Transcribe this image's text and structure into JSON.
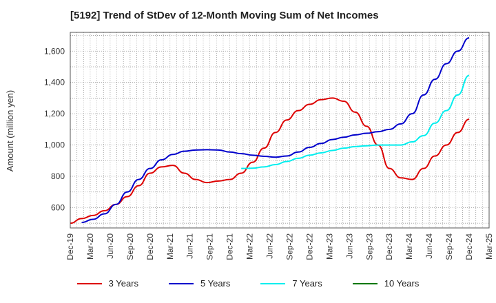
{
  "chart_data": {
    "type": "line",
    "title": "[5192]  Trend of StDev of 12-Month Moving Sum of Net Incomes",
    "ylabel": "Amount (million yen)",
    "xlabel": "",
    "x_ticks": [
      "Dec-19",
      "Mar-20",
      "Jun-20",
      "Sep-20",
      "Dec-20",
      "Mar-21",
      "Jun-21",
      "Sep-21",
      "Dec-21",
      "Mar-22",
      "Jun-22",
      "Sep-22",
      "Dec-22",
      "Mar-23",
      "Jun-23",
      "Sep-23",
      "Dec-23",
      "Mar-24",
      "Jun-24",
      "Sep-24",
      "Dec-24",
      "Mar-25"
    ],
    "y_ticks": [
      600,
      800,
      1000,
      1200,
      1400,
      1600
    ],
    "ylim": [
      470,
      1720
    ],
    "grid": true,
    "legend_position": "bottom",
    "series": [
      {
        "name": "3 Years",
        "color": "#dd0000",
        "values": [
          500,
          530,
          550,
          580,
          620,
          670,
          740,
          820,
          860,
          870,
          820,
          780,
          760,
          770,
          780,
          820,
          890,
          980,
          1080,
          1160,
          1220,
          1260,
          1290,
          1300,
          1280,
          1210,
          1120,
          1000,
          850,
          790,
          780,
          850,
          930,
          1000,
          1080,
          1165
        ]
      },
      {
        "name": "5 Years",
        "color": "#0000cc",
        "values": [
          null,
          505,
          525,
          560,
          620,
          700,
          780,
          850,
          905,
          940,
          960,
          968,
          970,
          968,
          955,
          945,
          935,
          928,
          922,
          930,
          955,
          985,
          1010,
          1035,
          1050,
          1065,
          1075,
          1085,
          1100,
          1135,
          1200,
          1320,
          1420,
          1520,
          1600,
          1685
        ]
      },
      {
        "name": "7 Years",
        "color": "#00eeee",
        "values": [
          null,
          null,
          null,
          null,
          null,
          null,
          null,
          null,
          null,
          null,
          null,
          null,
          null,
          null,
          null,
          850,
          852,
          860,
          875,
          895,
          915,
          935,
          950,
          965,
          980,
          990,
          995,
          1000,
          1000,
          1000,
          1020,
          1060,
          1140,
          1220,
          1320,
          1445
        ]
      },
      {
        "name": "10 Years",
        "color": "#007700",
        "values": []
      }
    ]
  }
}
